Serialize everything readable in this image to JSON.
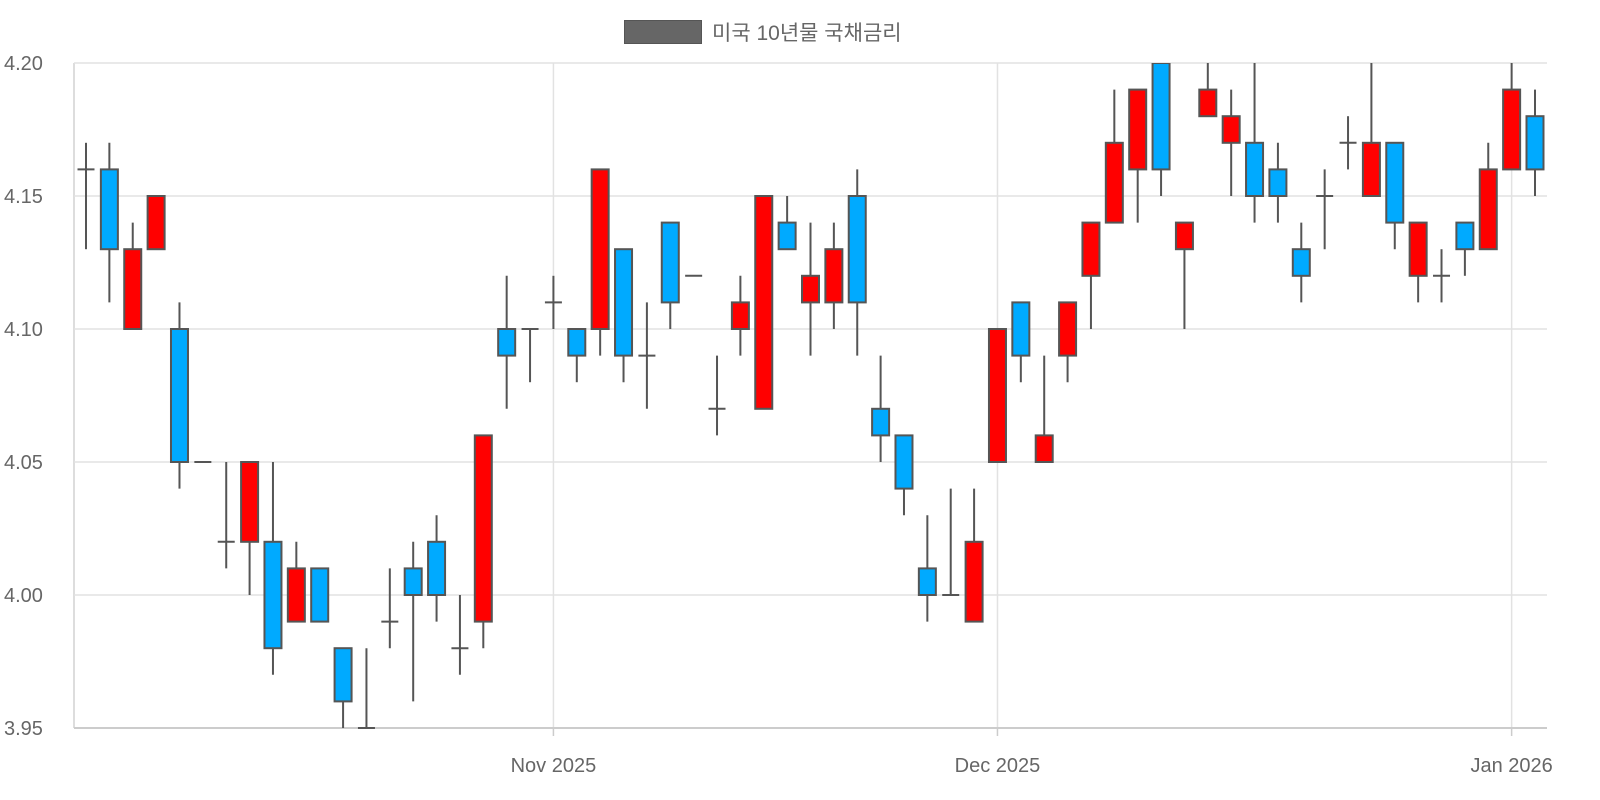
{
  "chart_data": {
    "type": "candlestick",
    "title": "",
    "legend": {
      "label": "미국 10년물 국채금리",
      "placement": "top-center",
      "color": "#666666"
    },
    "up_color": "#ff0000",
    "down_color": "#00aaff",
    "outline_color": "#555555",
    "ylim": [
      3.95,
      4.2
    ],
    "yticks": [
      "3.95",
      "4.00",
      "4.05",
      "4.10",
      "4.15",
      "4.20"
    ],
    "xticks": [
      {
        "index": 20,
        "label": "Nov 2025"
      },
      {
        "index": 39,
        "label": "Dec 2025"
      },
      {
        "index": 61,
        "label": "Jan 2026"
      }
    ],
    "grid": true,
    "ohlc": [
      [
        4.16,
        4.17,
        4.13,
        4.16
      ],
      [
        4.16,
        4.17,
        4.11,
        4.13
      ],
      [
        4.1,
        4.14,
        4.1,
        4.13
      ],
      [
        4.13,
        4.15,
        4.13,
        4.15
      ],
      [
        4.1,
        4.11,
        4.04,
        4.05
      ],
      [
        4.05,
        4.05,
        4.05,
        4.05
      ],
      [
        4.02,
        4.05,
        4.01,
        4.02
      ],
      [
        4.02,
        4.05,
        4.0,
        4.05
      ],
      [
        4.02,
        4.05,
        3.97,
        3.98
      ],
      [
        3.99,
        4.02,
        3.99,
        4.01
      ],
      [
        4.01,
        4.01,
        3.99,
        3.99
      ],
      [
        3.98,
        3.98,
        3.95,
        3.96
      ],
      [
        3.95,
        3.98,
        3.95,
        3.95
      ],
      [
        3.99,
        4.01,
        3.98,
        3.99
      ],
      [
        4.01,
        4.02,
        3.96,
        4.0
      ],
      [
        4.02,
        4.03,
        3.99,
        4.0
      ],
      [
        3.98,
        4.0,
        3.97,
        3.98
      ],
      [
        3.99,
        4.06,
        3.98,
        4.06
      ],
      [
        4.1,
        4.12,
        4.07,
        4.09
      ],
      [
        4.1,
        4.1,
        4.08,
        4.1
      ],
      [
        4.11,
        4.12,
        4.1,
        4.11
      ],
      [
        4.1,
        4.1,
        4.08,
        4.09
      ],
      [
        4.1,
        4.16,
        4.09,
        4.16
      ],
      [
        4.13,
        4.13,
        4.08,
        4.09
      ],
      [
        4.09,
        4.11,
        4.07,
        4.09
      ],
      [
        4.14,
        4.14,
        4.1,
        4.11
      ],
      [
        4.12,
        4.12,
        4.12,
        4.12
      ],
      [
        4.07,
        4.09,
        4.06,
        4.07
      ],
      [
        4.1,
        4.12,
        4.09,
        4.11
      ],
      [
        4.07,
        4.15,
        4.07,
        4.15
      ],
      [
        4.14,
        4.15,
        4.13,
        4.13
      ],
      [
        4.11,
        4.14,
        4.09,
        4.12
      ],
      [
        4.11,
        4.14,
        4.1,
        4.13
      ],
      [
        4.15,
        4.16,
        4.09,
        4.11
      ],
      [
        4.07,
        4.09,
        4.05,
        4.06
      ],
      [
        4.06,
        4.06,
        4.03,
        4.04
      ],
      [
        4.01,
        4.03,
        3.99,
        4.0
      ],
      [
        4.0,
        4.04,
        4.0,
        4.0
      ],
      [
        3.99,
        4.04,
        3.99,
        4.02
      ],
      [
        4.05,
        4.1,
        4.05,
        4.1
      ],
      [
        4.11,
        4.11,
        4.08,
        4.09
      ],
      [
        4.05,
        4.09,
        4.05,
        4.06
      ],
      [
        4.09,
        4.11,
        4.08,
        4.11
      ],
      [
        4.12,
        4.14,
        4.1,
        4.14
      ],
      [
        4.14,
        4.19,
        4.14,
        4.17
      ],
      [
        4.16,
        4.19,
        4.14,
        4.19
      ],
      [
        4.2,
        4.21,
        4.15,
        4.16
      ],
      [
        4.13,
        4.14,
        4.1,
        4.14
      ],
      [
        4.18,
        4.21,
        4.18,
        4.19
      ],
      [
        4.17,
        4.19,
        4.15,
        4.18
      ],
      [
        4.17,
        4.21,
        4.14,
        4.15
      ],
      [
        4.16,
        4.17,
        4.14,
        4.15
      ],
      [
        4.13,
        4.14,
        4.11,
        4.12
      ],
      [
        4.15,
        4.16,
        4.13,
        4.15
      ],
      [
        4.17,
        4.18,
        4.16,
        4.17
      ],
      [
        4.15,
        4.21,
        4.15,
        4.17
      ],
      [
        4.17,
        4.17,
        4.13,
        4.14
      ],
      [
        4.12,
        4.14,
        4.11,
        4.14
      ],
      [
        4.12,
        4.13,
        4.11,
        4.12
      ],
      [
        4.14,
        4.14,
        4.12,
        4.13
      ],
      [
        4.13,
        4.17,
        4.13,
        4.16
      ],
      [
        4.16,
        4.21,
        4.16,
        4.19
      ],
      [
        4.18,
        4.19,
        4.15,
        4.16
      ]
    ]
  }
}
